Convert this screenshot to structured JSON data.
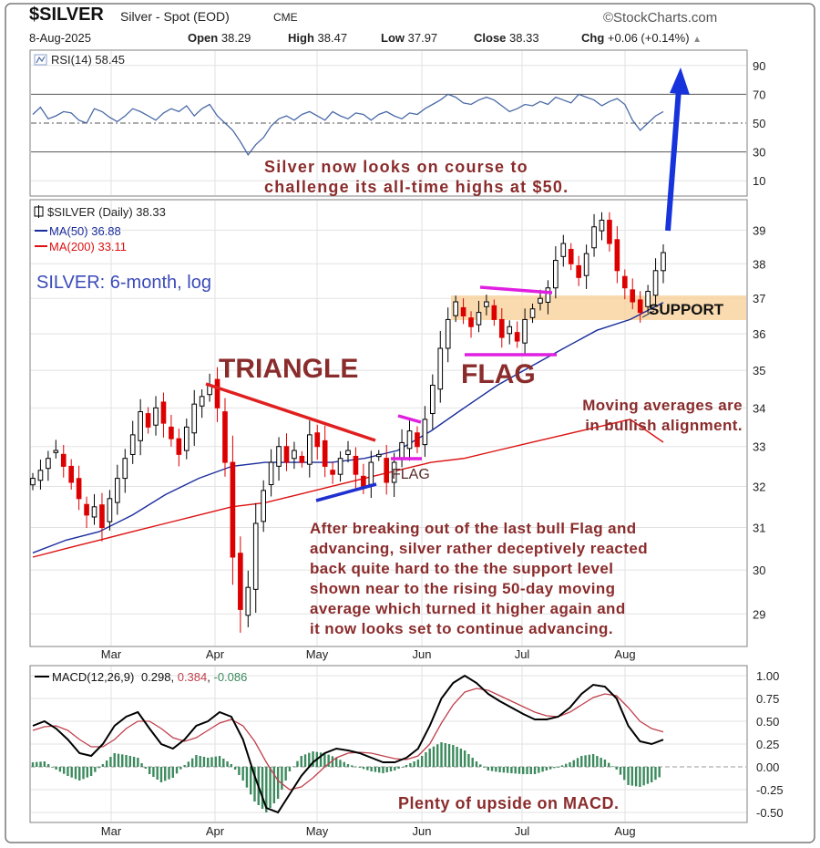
{
  "header": {
    "symbol": "$SILVER",
    "name": "Silver - Spot (EOD)",
    "exchange": "CME",
    "brand": "©StockCharts.com",
    "date": "8-Aug-2025",
    "open_label": "Open",
    "open": "38.29",
    "high_label": "High",
    "high": "38.47",
    "low_label": "Low",
    "low": "37.97",
    "close_label": "Close",
    "close": "38.33",
    "chg_label": "Chg",
    "chg": "+0.06 (+0.14%)"
  },
  "colors": {
    "up_candle": "#000000",
    "down_candle": "#dd0000",
    "ma50": "#1a2d9c",
    "ma200": "#dd1111",
    "rsi_line": "#4a6aa6",
    "macd_line": "#000000",
    "signal_line": "#c0404c",
    "histogram": "#3c8a5e",
    "annotation_text": "#8b2c2c",
    "support_band": "#f8cf96",
    "panel_border": "#808080",
    "frame": "#7a7a7a"
  },
  "rsi_panel": {
    "legend": "RSI(14) 58.45",
    "ticks": [
      "90",
      "70",
      "50",
      "30",
      "10"
    ],
    "annotation": [
      "Silver now looks on course to",
      "challenge its all-time highs at $50."
    ]
  },
  "price_panel": {
    "legend_main": "$SILVER (Daily) 38.33",
    "legend_ma50": "MA(50) 36.88",
    "legend_ma200": "MA(200) 33.11",
    "subtitle": "SILVER: 6-month, log",
    "ticks": [
      "39",
      "38",
      "37",
      "36",
      "35",
      "34",
      "33",
      "32",
      "31",
      "30",
      "29"
    ],
    "labels": {
      "triangle": "TRIANGLE",
      "flag_big": "FLAG",
      "flag_small": "FLAG",
      "support": "SUPPORT"
    },
    "annotation_ma": [
      "Moving averages are",
      "in bullish alignment."
    ],
    "annotation_main": [
      "After breaking out of the last bull Flag and",
      "advancing, silver rather deceptively reacted",
      "back quite hard to the the support level",
      "shown near to the rising 50-day moving",
      "average which turned it higher again and",
      "it now looks set to continue advancing."
    ],
    "month_labels": [
      "Mar",
      "Apr",
      "May",
      "Jun",
      "Jul",
      "Aug"
    ]
  },
  "macd_panel": {
    "legend_prefix": "MACD(12,26,9)",
    "legend_macd": "0.298",
    "legend_signal": "0.384",
    "legend_hist": "-0.086",
    "ticks": [
      "1.00",
      "0.75",
      "0.50",
      "0.25",
      "0.00",
      "-0.25",
      "-0.50"
    ],
    "annotation": "Plenty of upside on MACD.",
    "month_labels": [
      "Mar",
      "Apr",
      "May",
      "Jun",
      "Jul",
      "Aug"
    ]
  },
  "chart_data": [
    {
      "type": "line",
      "panel": "RSI(14)",
      "ylim": [
        0,
        100
      ],
      "reference_lines": [
        70,
        50,
        30
      ],
      "values": [
        56,
        61,
        53,
        55,
        58,
        57,
        52,
        50,
        60,
        58,
        54,
        51,
        55,
        60,
        58,
        55,
        52,
        57,
        60,
        58,
        62,
        55,
        60,
        63,
        55,
        50,
        45,
        37,
        28,
        35,
        40,
        48,
        53,
        55,
        52,
        56,
        58,
        55,
        52,
        58,
        55,
        53,
        57,
        56,
        52,
        56,
        58,
        55,
        53,
        57,
        56,
        60,
        63,
        66,
        70,
        68,
        64,
        63,
        66,
        68,
        66,
        62,
        58,
        60,
        63,
        62,
        65,
        63,
        68,
        66,
        64,
        70,
        68,
        66,
        62,
        65,
        67,
        63,
        52,
        45,
        50,
        55,
        58
      ]
    },
    {
      "type": "candlestick",
      "panel": "$SILVER (Daily), log scale",
      "ylim": [
        28.3,
        39.9
      ],
      "x": [
        "Mar",
        "Apr",
        "May",
        "Jun",
        "Jul",
        "Aug"
      ],
      "closes": [
        32.2,
        32.4,
        32.7,
        32.9,
        32.5,
        32.1,
        31.7,
        31.3,
        31.5,
        31.0,
        31.7,
        32.2,
        32.7,
        33.3,
        33.9,
        33.5,
        34.0,
        33.6,
        33.2,
        32.8,
        33.5,
        34.1,
        34.3,
        34.6,
        34.0,
        32.6,
        30.3,
        29.1,
        29.6,
        31.1,
        31.9,
        32.6,
        33.0,
        32.6,
        32.9,
        32.6,
        33.3,
        33.0,
        32.5,
        32.3,
        32.7,
        32.9,
        32.3,
        32.0,
        32.6,
        32.8,
        32.1,
        32.6,
        33.1,
        33.4,
        33.0,
        33.7,
        34.6,
        35.6,
        36.4,
        36.9,
        36.5,
        36.2,
        36.6,
        36.9,
        36.4,
        35.9,
        36.2,
        35.8,
        36.4,
        36.7,
        37.0,
        37.3,
        38.1,
        38.6,
        38.0,
        37.6,
        38.3,
        39.1,
        39.3,
        38.6,
        37.8,
        37.3,
        36.9,
        36.6,
        37.2,
        37.8,
        38.33
      ],
      "ma50": [
        30.4,
        30.7,
        30.9,
        31.3,
        31.8,
        32.2,
        32.5,
        32.6,
        32.6,
        32.6,
        32.7,
        32.9,
        33.4,
        34.0,
        34.6,
        35.1,
        35.6,
        36.1,
        36.4,
        36.88
      ],
      "ma200": [
        30.3,
        30.5,
        30.7,
        30.9,
        31.1,
        31.3,
        31.5,
        31.6,
        31.8,
        32.0,
        32.2,
        32.4,
        32.6,
        32.7,
        32.9,
        33.1,
        33.3,
        33.5,
        33.7,
        33.11
      ]
    },
    {
      "type": "line",
      "panel": "MACD(12,26,9)",
      "ylim": [
        -0.6,
        1.1
      ],
      "series": [
        {
          "name": "MACD(12,26,9)",
          "values": [
            0.45,
            0.5,
            0.42,
            0.3,
            0.15,
            0.12,
            0.25,
            0.45,
            0.55,
            0.6,
            0.42,
            0.25,
            0.2,
            0.3,
            0.45,
            0.5,
            0.6,
            0.55,
            0.3,
            -0.1,
            -0.45,
            -0.5,
            -0.3,
            -0.1,
            0.05,
            0.15,
            0.2,
            0.18,
            0.15,
            0.1,
            0.05,
            0.05,
            0.1,
            0.2,
            0.45,
            0.75,
            0.92,
            1.0,
            0.92,
            0.8,
            0.72,
            0.65,
            0.58,
            0.52,
            0.52,
            0.55,
            0.65,
            0.8,
            0.9,
            0.88,
            0.75,
            0.45,
            0.28,
            0.25,
            0.298
          ]
        },
        {
          "name": "",
          "values": [
            0.4,
            0.44,
            0.45,
            0.4,
            0.3,
            0.22,
            0.22,
            0.3,
            0.42,
            0.5,
            0.5,
            0.42,
            0.32,
            0.28,
            0.32,
            0.4,
            0.48,
            0.52,
            0.45,
            0.28,
            0.05,
            -0.15,
            -0.25,
            -0.22,
            -0.12,
            0.0,
            0.1,
            0.15,
            0.16,
            0.15,
            0.12,
            0.09,
            0.08,
            0.12,
            0.25,
            0.48,
            0.68,
            0.82,
            0.86,
            0.84,
            0.78,
            0.72,
            0.66,
            0.6,
            0.56,
            0.55,
            0.6,
            0.68,
            0.76,
            0.8,
            0.78,
            0.65,
            0.5,
            0.42,
            0.384
          ]
        },
        {
          "name": "",
          "values": [
            0.05,
            0.06,
            -0.03,
            -0.1,
            -0.15,
            -0.1,
            0.03,
            0.15,
            0.13,
            0.1,
            -0.08,
            -0.17,
            -0.12,
            0.02,
            0.13,
            0.1,
            0.12,
            0.03,
            -0.15,
            -0.38,
            -0.5,
            -0.35,
            -0.05,
            0.12,
            0.17,
            0.15,
            0.1,
            0.03,
            -0.01,
            -0.05,
            -0.07,
            -0.04,
            0.02,
            0.08,
            0.2,
            0.27,
            0.24,
            0.18,
            0.06,
            -0.04,
            -0.06,
            -0.07,
            -0.08,
            -0.08,
            -0.04,
            0.0,
            0.05,
            0.12,
            0.14,
            0.08,
            -0.03,
            -0.2,
            -0.22,
            -0.17,
            -0.086
          ]
        }
      ]
    }
  ]
}
